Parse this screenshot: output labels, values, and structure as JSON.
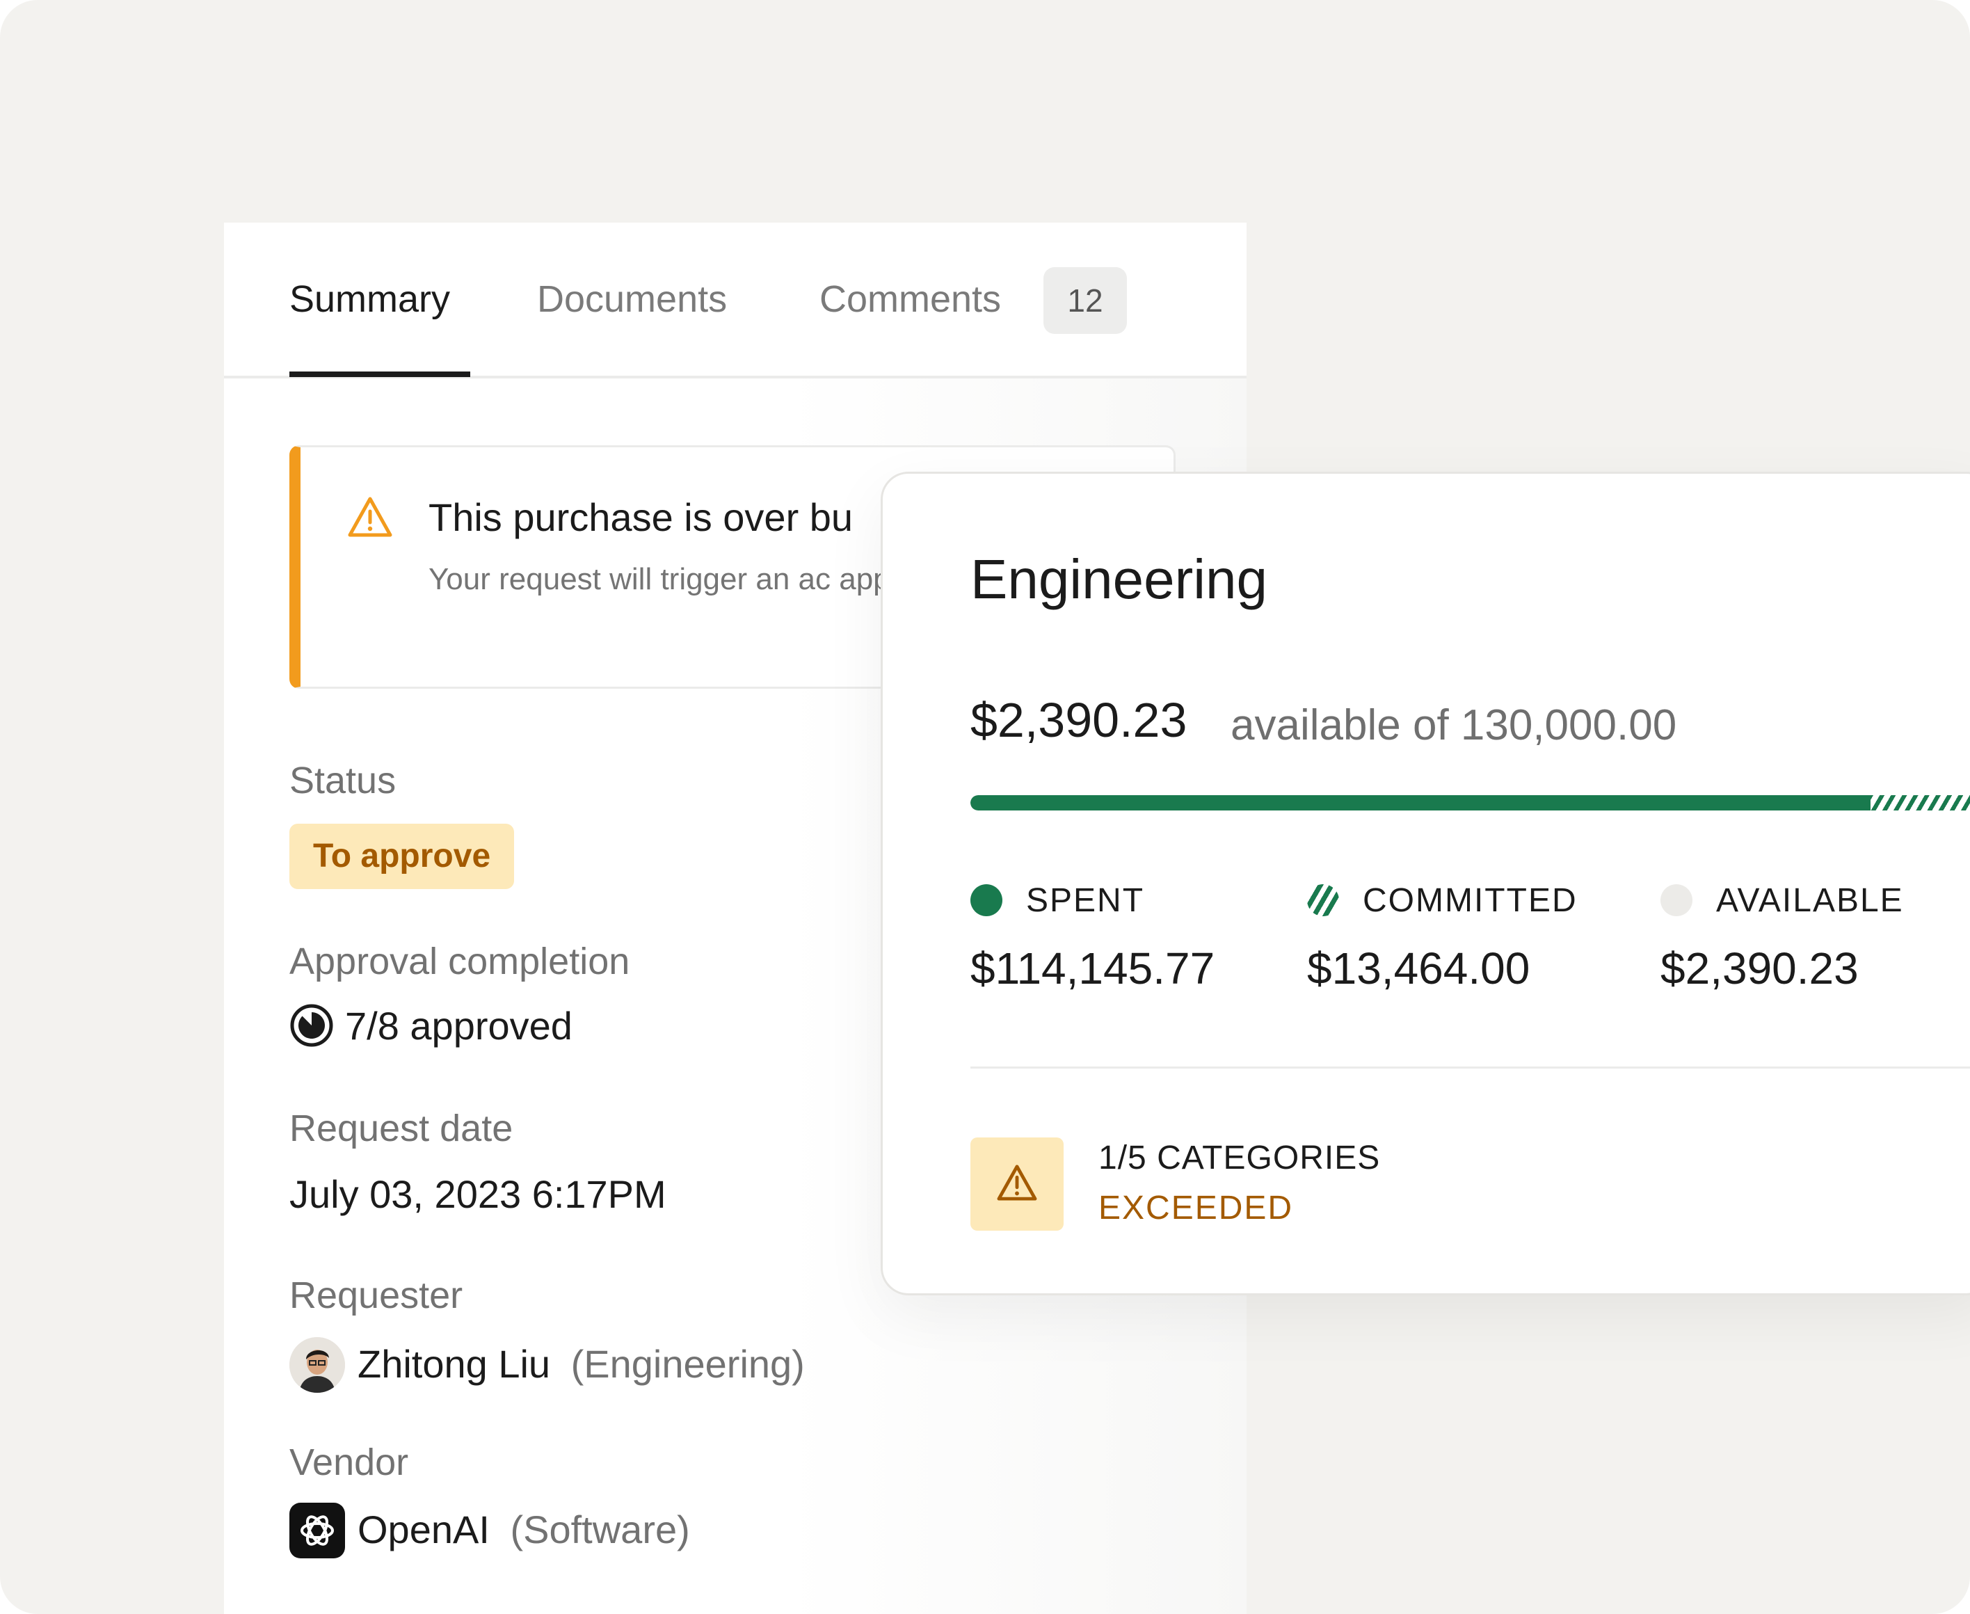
{
  "tabs": [
    {
      "label": "Summary",
      "active": true
    },
    {
      "label": "Documents",
      "active": false
    },
    {
      "label": "Comments",
      "active": false,
      "badge": "12"
    }
  ],
  "alert": {
    "title": "This purchase is over bu",
    "body": "Your request will trigger an ac approval step.",
    "icon": "warning-triangle-icon"
  },
  "fields": {
    "status": {
      "label": "Status",
      "value": "To approve"
    },
    "approval": {
      "label": "Approval completion",
      "value": "7/8 approved",
      "approved": 7,
      "total": 8
    },
    "request_date": {
      "label": "Request date",
      "value": "July 03, 2023 6:17PM"
    },
    "requester": {
      "label": "Requester",
      "name": "Zhitong Liu",
      "department": "(Engineering)"
    },
    "vendor": {
      "label": "Vendor",
      "name": "OpenAI",
      "category": "(Software)",
      "logo": "openai-logo-icon"
    }
  },
  "budget": {
    "title": "Engineering",
    "available_amount": "$2,390.23",
    "available_text": "available of 130,000.00",
    "total": 130000.0,
    "spent": 114145.77,
    "committed": 13464.0,
    "available": 2390.23,
    "legend": [
      {
        "label": "SPENT",
        "value": "$114,145.77",
        "color": "#197a4e",
        "icon": "spent-dot-icon"
      },
      {
        "label": "COMMITTED",
        "value": "$13,464.00",
        "color": "#197a4e",
        "icon": "committed-striped-icon"
      },
      {
        "label": "AVAILABLE",
        "value": "$2,390.23",
        "color": "#ecebe8",
        "icon": "available-dot-icon"
      }
    ],
    "categories_label": "1/5 CATEGORIES",
    "categories_status": "EXCEEDED"
  },
  "colors": {
    "accent_green": "#197a4e",
    "warning_orange": "#f29b1d",
    "warning_bg": "#fde9b9",
    "warning_text": "#a35a00"
  }
}
